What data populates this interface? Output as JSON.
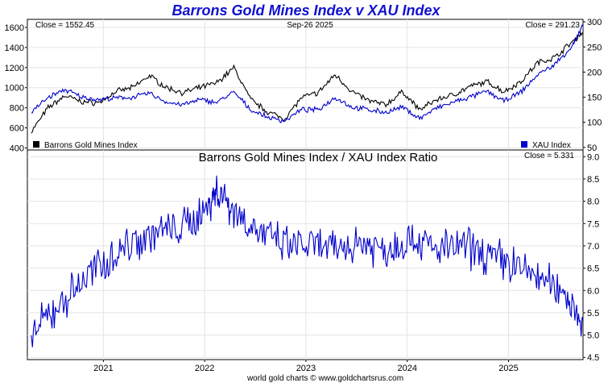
{
  "chart_data": [
    {
      "type": "line",
      "title": "Barrons Gold Mines Index v XAU Index",
      "date_label": "Sep-26  2025",
      "left_close": "Close = 1552.45",
      "right_close": "Close = 291.23",
      "x_range": [
        "2020-04",
        "2025-09-26"
      ],
      "left_axis": {
        "range": [
          380,
          1680
        ],
        "ticks": [
          400,
          600,
          800,
          1000,
          1200,
          1400,
          1600
        ]
      },
      "right_axis": {
        "range": [
          45,
          305
        ],
        "ticks": [
          50,
          100,
          150,
          200,
          250,
          300
        ]
      },
      "grid": true,
      "legend": {
        "position": "bottom"
      },
      "series": [
        {
          "name": "Barrons Gold Mines Index",
          "axis": "left",
          "color": "#000000",
          "x": [
            "2020-04",
            "2020-06",
            "2020-08",
            "2020-10",
            "2020-12",
            "2021-02",
            "2021-04",
            "2021-06",
            "2021-08",
            "2021-10",
            "2021-12",
            "2022-02",
            "2022-04",
            "2022-06",
            "2022-08",
            "2022-10",
            "2022-12",
            "2023-02",
            "2023-04",
            "2023-06",
            "2023-08",
            "2023-10",
            "2023-12",
            "2024-02",
            "2024-04",
            "2024-06",
            "2024-08",
            "2024-10",
            "2024-12",
            "2025-02",
            "2025-04",
            "2025-06",
            "2025-08",
            "2025-09-26"
          ],
          "values": [
            560,
            800,
            920,
            860,
            850,
            960,
            1000,
            1120,
            1000,
            950,
            1000,
            1050,
            1200,
            880,
            760,
            690,
            900,
            950,
            1130,
            960,
            870,
            830,
            960,
            780,
            880,
            930,
            1010,
            1060,
            960,
            1060,
            1250,
            1300,
            1450,
            1552.45
          ]
        },
        {
          "name": "XAU Index",
          "axis": "right",
          "color": "#0000cc",
          "x": [
            "2020-04",
            "2020-06",
            "2020-08",
            "2020-10",
            "2020-12",
            "2021-02",
            "2021-04",
            "2021-06",
            "2021-08",
            "2021-10",
            "2021-12",
            "2022-02",
            "2022-04",
            "2022-06",
            "2022-08",
            "2022-10",
            "2022-12",
            "2023-02",
            "2023-04",
            "2023-06",
            "2023-08",
            "2023-10",
            "2023-12",
            "2024-02",
            "2024-04",
            "2024-06",
            "2024-08",
            "2024-10",
            "2024-12",
            "2025-02",
            "2025-04",
            "2025-06",
            "2025-08",
            "2025-09-26"
          ],
          "values": [
            120,
            150,
            165,
            150,
            145,
            148,
            150,
            158,
            140,
            135,
            145,
            140,
            160,
            125,
            110,
            103,
            125,
            125,
            150,
            130,
            125,
            120,
            130,
            108,
            128,
            140,
            150,
            162,
            142,
            160,
            195,
            215,
            250,
            291.23
          ]
        }
      ]
    },
    {
      "type": "line",
      "title": "Barrons Gold Mines Index  /  XAU Index Ratio",
      "close": "Close = 5.331",
      "x_range": [
        "2020-04",
        "2025-09-26"
      ],
      "y_axis": {
        "range": [
          4.45,
          9.15
        ],
        "ticks": [
          4.5,
          5.0,
          5.5,
          6.0,
          6.5,
          7.0,
          7.5,
          8.0,
          8.5,
          9.0
        ]
      },
      "x_ticks": [
        "2021",
        "2022",
        "2023",
        "2024",
        "2025"
      ],
      "grid": true,
      "series": [
        {
          "name": "Ratio",
          "color": "#0000cc",
          "x": [
            "2020-04",
            "2020-07",
            "2020-10",
            "2021-01",
            "2021-04",
            "2021-07",
            "2021-10",
            "2022-01",
            "2022-02",
            "2022-04",
            "2022-07",
            "2022-10",
            "2023-01",
            "2023-04",
            "2023-07",
            "2023-10",
            "2024-01",
            "2024-04",
            "2024-07",
            "2024-10",
            "2025-01",
            "2025-04",
            "2025-07",
            "2025-09-26"
          ],
          "values": [
            5.0,
            5.6,
            6.2,
            6.7,
            7.1,
            7.3,
            7.4,
            7.9,
            8.3,
            7.8,
            7.3,
            7.0,
            7.0,
            6.9,
            7.1,
            6.9,
            7.2,
            6.9,
            7.0,
            6.8,
            6.6,
            6.3,
            6.0,
            5.331
          ]
        }
      ],
      "footer": "world gold charts © www.goldchartsrus.com"
    }
  ]
}
